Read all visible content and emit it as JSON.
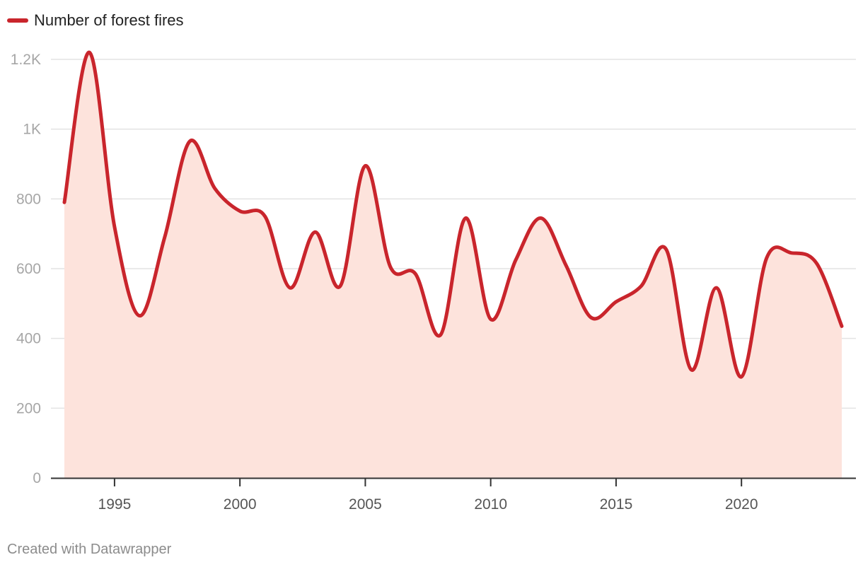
{
  "legend": {
    "label": "Number of forest fires",
    "color": "#c9252c"
  },
  "footer": {
    "credit": "Created with Datawrapper"
  },
  "colors": {
    "line": "#c9252c",
    "area": "#fde3dc",
    "grid": "#e3e3e3",
    "axis": "#333333",
    "y_tick_text": "#a6a6a6",
    "x_tick_text": "#555555"
  },
  "chart_data": {
    "type": "area",
    "title": "",
    "xlabel": "",
    "ylabel": "",
    "x": [
      1993,
      1994,
      1995,
      1996,
      1997,
      1998,
      1999,
      2000,
      2001,
      2002,
      2003,
      2004,
      2005,
      2006,
      2007,
      2008,
      2009,
      2010,
      2011,
      2012,
      2013,
      2014,
      2015,
      2016,
      2017,
      2018,
      2019,
      2020,
      2021,
      2022,
      2023,
      2024
    ],
    "series": [
      {
        "name": "Number of forest fires",
        "values": [
          790,
          1220,
          720,
          465,
          690,
          965,
          830,
          765,
          750,
          545,
          705,
          550,
          895,
          605,
          585,
          410,
          745,
          455,
          625,
          745,
          610,
          460,
          505,
          550,
          655,
          310,
          545,
          290,
          630,
          645,
          615,
          435
        ]
      }
    ],
    "ylim": [
      0,
      1200
    ],
    "xlim": [
      1993,
      2024
    ],
    "y_ticks": [
      {
        "value": 0,
        "label": "0"
      },
      {
        "value": 200,
        "label": "200"
      },
      {
        "value": 400,
        "label": "400"
      },
      {
        "value": 600,
        "label": "600"
      },
      {
        "value": 800,
        "label": "800"
      },
      {
        "value": 1000,
        "label": "1K"
      },
      {
        "value": 1200,
        "label": "1.2K"
      }
    ],
    "x_ticks": [
      {
        "value": 1995,
        "label": "1995"
      },
      {
        "value": 2000,
        "label": "2000"
      },
      {
        "value": 2005,
        "label": "2005"
      },
      {
        "value": 2010,
        "label": "2010"
      },
      {
        "value": 2015,
        "label": "2015"
      },
      {
        "value": 2020,
        "label": "2020"
      }
    ],
    "grid": true,
    "legend_position": "top-left"
  }
}
